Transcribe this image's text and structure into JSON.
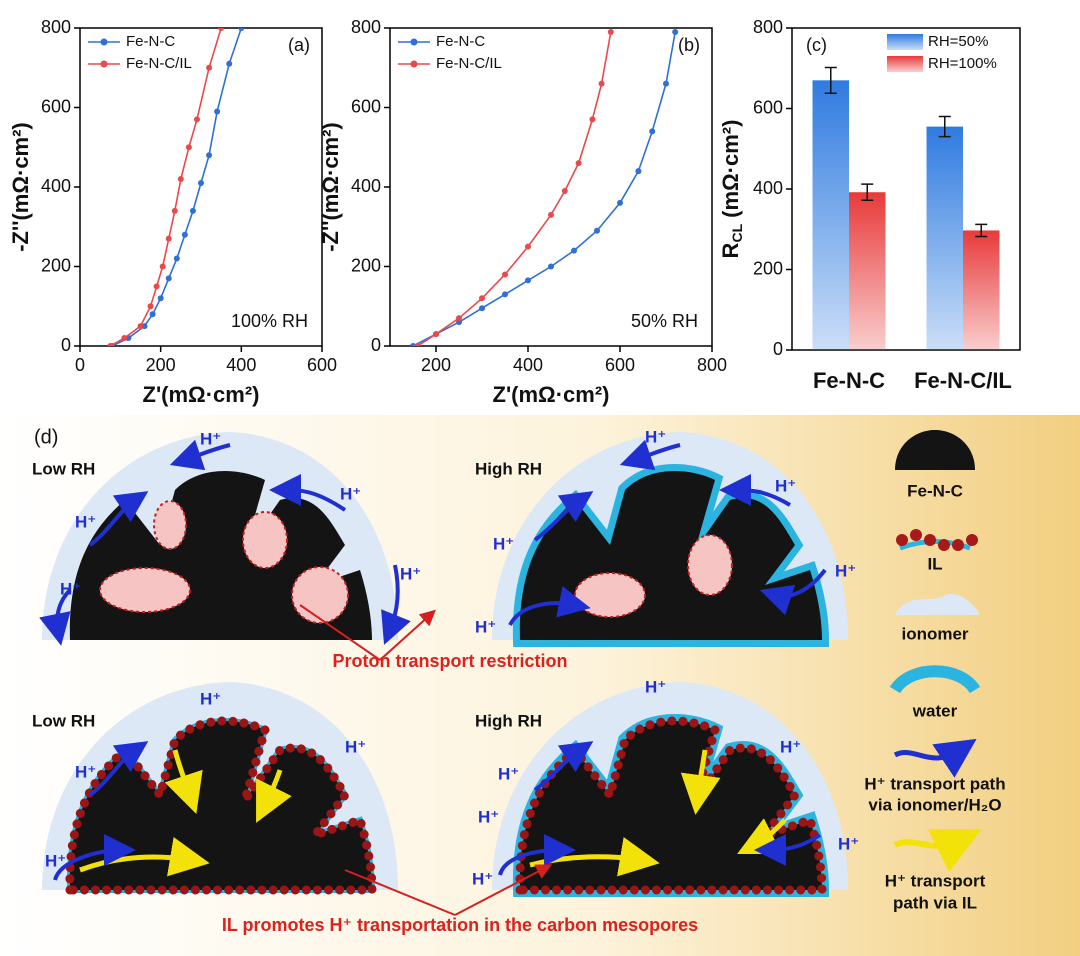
{
  "chart_data": [
    {
      "type": "line",
      "panel_label": "(a)",
      "annotation": "100% RH",
      "xlabel": "Z'(mΩ·cm²)",
      "ylabel": "-Z''(mΩ·cm²)",
      "xlim": [
        0,
        600
      ],
      "xticks": [
        0,
        200,
        400,
        600
      ],
      "ylim": [
        0,
        800
      ],
      "yticks": [
        0,
        200,
        400,
        600,
        800
      ],
      "series": [
        {
          "name": "Fe-N-C",
          "color": "#2f6fd6",
          "x": [
            80,
            120,
            160,
            180,
            200,
            220,
            240,
            260,
            280,
            300,
            320,
            340,
            370,
            400
          ],
          "values": [
            0,
            20,
            50,
            80,
            120,
            170,
            220,
            280,
            340,
            410,
            480,
            590,
            710,
            800
          ]
        },
        {
          "name": "Fe-N-C/IL",
          "color": "#e84a4c",
          "x": [
            75,
            110,
            150,
            175,
            190,
            205,
            220,
            235,
            250,
            270,
            290,
            320,
            350
          ],
          "values": [
            0,
            20,
            50,
            100,
            150,
            200,
            270,
            340,
            420,
            500,
            570,
            700,
            800
          ]
        }
      ]
    },
    {
      "type": "line",
      "panel_label": "(b)",
      "annotation": "50% RH",
      "xlabel": "Z'(mΩ·cm²)",
      "ylabel": "-Z''(mΩ·cm²)",
      "xlim": [
        100,
        800
      ],
      "xticks": [
        200,
        400,
        600,
        800
      ],
      "ylim": [
        0,
        800
      ],
      "yticks": [
        0,
        200,
        400,
        600,
        800
      ],
      "series": [
        {
          "name": "Fe-N-C",
          "color": "#2f6fd6",
          "x": [
            150,
            200,
            250,
            300,
            350,
            400,
            450,
            500,
            550,
            600,
            640,
            670,
            700,
            720
          ],
          "values": [
            0,
            30,
            60,
            95,
            130,
            165,
            200,
            240,
            290,
            360,
            440,
            540,
            660,
            790
          ]
        },
        {
          "name": "Fe-N-C/IL",
          "color": "#e84a4c",
          "x": [
            160,
            200,
            250,
            300,
            350,
            400,
            450,
            480,
            510,
            540,
            560,
            580
          ],
          "values": [
            0,
            30,
            70,
            120,
            180,
            250,
            330,
            390,
            460,
            570,
            660,
            790
          ]
        }
      ]
    },
    {
      "type": "bar",
      "panel_label": "(c)",
      "ylabel": "R",
      "ylabel_sub": "CL",
      "ylabel_unit": "(mΩ·cm²)",
      "categories": [
        "Fe-N-C",
        "Fe-N-C/IL"
      ],
      "ylim": [
        0,
        800
      ],
      "yticks": [
        0,
        200,
        400,
        600,
        800
      ],
      "series": [
        {
          "name": "RH=50%",
          "color": "#2f7be0",
          "values": [
            670,
            555
          ],
          "errors": [
            32,
            25
          ]
        },
        {
          "name": "RH=100%",
          "color": "#e83a3a",
          "values": [
            392,
            297
          ],
          "errors": [
            20,
            15
          ]
        }
      ]
    }
  ],
  "diagram": {
    "panel_label": "(d)",
    "proton": "H⁺",
    "panels": [
      "Low RH",
      "High RH",
      "Low RH",
      "High RH"
    ],
    "callouts": [
      "Proton transport restriction",
      "IL promotes H⁺ transportation in the carbon mesopores"
    ],
    "legend": [
      "Fe-N-C",
      "IL",
      "ionomer",
      "water",
      "H⁺ transport path",
      "via ionomer/H₂O",
      "H⁺ transport",
      "path via IL"
    ]
  }
}
